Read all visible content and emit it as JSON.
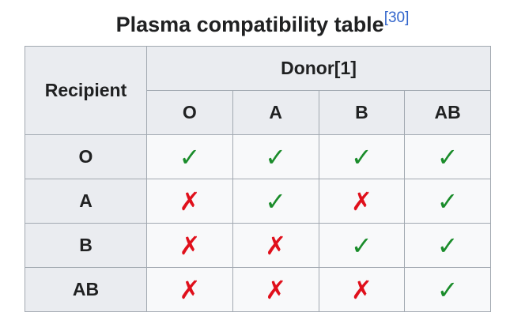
{
  "caption": {
    "title": "Plasma compatibility table",
    "ref": "[30]"
  },
  "table": {
    "corner_label": "Recipient",
    "donor_label": "Donor[1]",
    "donor_types": [
      "O",
      "A",
      "B",
      "AB"
    ],
    "rows": [
      {
        "recipient": "O",
        "cells": [
          "✓",
          "✓",
          "✓",
          "✓"
        ],
        "compatible": [
          true,
          true,
          true,
          true
        ]
      },
      {
        "recipient": "A",
        "cells": [
          "✗",
          "✓",
          "✗",
          "✓"
        ],
        "compatible": [
          false,
          true,
          false,
          true
        ]
      },
      {
        "recipient": "B",
        "cells": [
          "✗",
          "✗",
          "✓",
          "✓"
        ],
        "compatible": [
          false,
          false,
          true,
          true
        ]
      },
      {
        "recipient": "AB",
        "cells": [
          "✗",
          "✗",
          "✗",
          "✓"
        ],
        "compatible": [
          false,
          false,
          false,
          true
        ]
      }
    ]
  },
  "colors": {
    "yes": "#1a8c2a",
    "no": "#e0101b",
    "link": "#3366cc",
    "header_bg": "#eaecf0",
    "cell_bg": "#f8f9fa",
    "border": "#a2a9b1"
  },
  "icons": {
    "yes": "check-mark-icon",
    "no": "cross-mark-icon"
  }
}
